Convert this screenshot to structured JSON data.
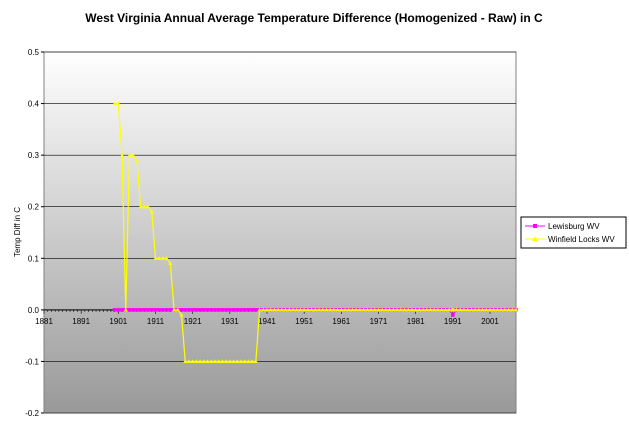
{
  "chart_data": {
    "type": "line",
    "title": "West Virginia Annual Average Temperature Difference (Homogenized - Raw) in C",
    "xlabel": "",
    "ylabel": "Temp Diff in C",
    "xlim": [
      1881,
      2008
    ],
    "ylim": [
      -0.2,
      0.5
    ],
    "x_ticks": [
      "1881",
      "1891",
      "1901",
      "1911",
      "1921",
      "1931",
      "1941",
      "1951",
      "1961",
      "1971",
      "1981",
      "1991",
      "2001"
    ],
    "y_ticks": [
      "0.5",
      "0.4",
      "0.3",
      "0.2",
      "0.1",
      "0.0",
      "-0.1",
      "-0.2"
    ],
    "grid": true,
    "legend_position": "right",
    "colors": {
      "lewisburg": "#ff00ff",
      "winfield": "#ffff00",
      "plot_bg_top": "#ffffff",
      "plot_bg_bottom": "#999999"
    },
    "series": [
      {
        "name": "Lewisburg WV",
        "color": "#ff00ff",
        "marker": "square",
        "points": [
          [
            1900,
            0
          ],
          [
            1901,
            0
          ],
          [
            1902,
            0
          ],
          [
            1903,
            0
          ],
          [
            1904,
            0
          ],
          [
            1905,
            0
          ],
          [
            1906,
            0
          ],
          [
            1907,
            0
          ],
          [
            1908,
            0
          ],
          [
            1909,
            0
          ],
          [
            1910,
            0
          ],
          [
            1911,
            0
          ],
          [
            1912,
            0
          ],
          [
            1913,
            0
          ],
          [
            1914,
            0
          ],
          [
            1915,
            0
          ],
          [
            1916,
            0
          ],
          [
            1917,
            0
          ],
          [
            1918,
            0
          ],
          [
            1919,
            0
          ],
          [
            1920,
            0
          ],
          [
            1921,
            0
          ],
          [
            1922,
            0
          ],
          [
            1923,
            0
          ],
          [
            1924,
            0
          ],
          [
            1925,
            0
          ],
          [
            1926,
            0
          ],
          [
            1927,
            0
          ],
          [
            1928,
            0
          ],
          [
            1929,
            0
          ],
          [
            1930,
            0
          ],
          [
            1931,
            0
          ],
          [
            1932,
            0
          ],
          [
            1933,
            0
          ],
          [
            1934,
            0
          ],
          [
            1935,
            0
          ],
          [
            1936,
            0
          ],
          [
            1937,
            0
          ],
          [
            1938,
            0
          ],
          [
            1939,
            0
          ],
          [
            1940,
            0
          ],
          [
            1941,
            0
          ],
          [
            1942,
            0
          ],
          [
            1943,
            0
          ],
          [
            1944,
            0
          ],
          [
            1945,
            0
          ],
          [
            1946,
            0
          ],
          [
            1947,
            0
          ],
          [
            1948,
            0
          ],
          [
            1949,
            0
          ],
          [
            1950,
            0
          ],
          [
            1951,
            0
          ],
          [
            1952,
            0
          ],
          [
            1953,
            0
          ],
          [
            1954,
            0
          ],
          [
            1955,
            0
          ],
          [
            1956,
            0
          ],
          [
            1957,
            0
          ],
          [
            1958,
            0
          ],
          [
            1959,
            0
          ],
          [
            1960,
            0
          ],
          [
            1961,
            0
          ],
          [
            1962,
            0
          ],
          [
            1963,
            0
          ],
          [
            1964,
            0
          ],
          [
            1965,
            0
          ],
          [
            1966,
            0
          ],
          [
            1967,
            0
          ],
          [
            1968,
            0
          ],
          [
            1969,
            0
          ],
          [
            1970,
            0
          ],
          [
            1971,
            0
          ],
          [
            1972,
            0
          ],
          [
            1973,
            0
          ],
          [
            1974,
            0
          ],
          [
            1975,
            0
          ],
          [
            1976,
            0
          ],
          [
            1977,
            0
          ],
          [
            1978,
            0
          ],
          [
            1979,
            0
          ],
          [
            1980,
            0
          ],
          [
            1981,
            0
          ],
          [
            1982,
            0
          ],
          [
            1983,
            0
          ],
          [
            1984,
            0
          ],
          [
            1985,
            0
          ],
          [
            1986,
            0
          ],
          [
            1987,
            0
          ],
          [
            1988,
            0
          ],
          [
            1989,
            0
          ],
          [
            1990,
            0
          ],
          [
            1991,
            -0.01
          ],
          [
            1992,
            0
          ],
          [
            1993,
            0
          ],
          [
            1994,
            0
          ],
          [
            1995,
            0
          ],
          [
            1996,
            0
          ],
          [
            1997,
            0
          ],
          [
            1998,
            0
          ],
          [
            1999,
            0
          ],
          [
            2000,
            0
          ],
          [
            2001,
            0
          ],
          [
            2002,
            0
          ],
          [
            2003,
            0
          ],
          [
            2004,
            0
          ],
          [
            2005,
            0
          ],
          [
            2006,
            0
          ],
          [
            2007,
            0
          ],
          [
            2008,
            0
          ]
        ]
      },
      {
        "name": "Winfield Locks WV",
        "color": "#ffff00",
        "marker": "triangle",
        "points": [
          [
            1900,
            0.4
          ],
          [
            1901,
            0.4
          ],
          [
            1902,
            0.3
          ],
          [
            1903,
            0.0
          ],
          [
            1904,
            0.3
          ],
          [
            1905,
            0.3
          ],
          [
            1906,
            0.29
          ],
          [
            1907,
            0.2
          ],
          [
            1908,
            0.2
          ],
          [
            1909,
            0.2
          ],
          [
            1910,
            0.19
          ],
          [
            1911,
            0.1
          ],
          [
            1912,
            0.1
          ],
          [
            1913,
            0.1
          ],
          [
            1914,
            0.1
          ],
          [
            1915,
            0.09
          ],
          [
            1916,
            0.0
          ],
          [
            1917,
            0.0
          ],
          [
            1918,
            -0.01
          ],
          [
            1919,
            -0.1
          ],
          [
            1920,
            -0.1
          ],
          [
            1921,
            -0.1
          ],
          [
            1922,
            -0.1
          ],
          [
            1923,
            -0.1
          ],
          [
            1924,
            -0.1
          ],
          [
            1925,
            -0.1
          ],
          [
            1926,
            -0.1
          ],
          [
            1927,
            -0.1
          ],
          [
            1928,
            -0.1
          ],
          [
            1929,
            -0.1
          ],
          [
            1930,
            -0.1
          ],
          [
            1931,
            -0.1
          ],
          [
            1932,
            -0.1
          ],
          [
            1933,
            -0.1
          ],
          [
            1934,
            -0.1
          ],
          [
            1935,
            -0.1
          ],
          [
            1936,
            -0.1
          ],
          [
            1937,
            -0.1
          ],
          [
            1938,
            -0.1
          ],
          [
            1939,
            0.0
          ],
          [
            1940,
            0
          ],
          [
            1941,
            0
          ],
          [
            1942,
            0
          ],
          [
            1943,
            0
          ],
          [
            1944,
            0
          ],
          [
            1945,
            0
          ],
          [
            1946,
            0
          ],
          [
            1947,
            0
          ],
          [
            1948,
            0
          ],
          [
            1949,
            0
          ],
          [
            1950,
            0
          ],
          [
            1951,
            0
          ],
          [
            1952,
            0
          ],
          [
            1953,
            0
          ],
          [
            1954,
            0
          ],
          [
            1955,
            0
          ],
          [
            1956,
            0
          ],
          [
            1957,
            0
          ],
          [
            1958,
            0
          ],
          [
            1959,
            0
          ],
          [
            1960,
            0
          ],
          [
            1961,
            0
          ],
          [
            1962,
            0
          ],
          [
            1963,
            0
          ],
          [
            1964,
            0
          ],
          [
            1965,
            0
          ],
          [
            1966,
            0
          ],
          [
            1967,
            0
          ],
          [
            1968,
            0
          ],
          [
            1969,
            0
          ],
          [
            1970,
            0
          ],
          [
            1971,
            0
          ],
          [
            1972,
            0
          ],
          [
            1973,
            0
          ],
          [
            1974,
            0
          ],
          [
            1975,
            0
          ],
          [
            1976,
            0
          ],
          [
            1977,
            0
          ],
          [
            1978,
            0
          ],
          [
            1979,
            0
          ],
          [
            1980,
            0
          ],
          [
            1981,
            0
          ],
          [
            1982,
            0
          ],
          [
            1983,
            0
          ],
          [
            1984,
            0
          ],
          [
            1985,
            0
          ],
          [
            1986,
            0
          ],
          [
            1987,
            0
          ],
          [
            1988,
            0
          ],
          [
            1989,
            0
          ],
          [
            1990,
            0
          ],
          [
            1991,
            0
          ],
          [
            1992,
            0
          ],
          [
            1993,
            0
          ],
          [
            1994,
            0
          ],
          [
            1995,
            0
          ],
          [
            1996,
            0
          ],
          [
            1997,
            0
          ],
          [
            1998,
            0
          ],
          [
            1999,
            0
          ],
          [
            2000,
            0
          ],
          [
            2001,
            0
          ],
          [
            2002,
            0
          ],
          [
            2003,
            0
          ],
          [
            2004,
            0
          ],
          [
            2005,
            0
          ],
          [
            2006,
            0
          ],
          [
            2007,
            0
          ],
          [
            2008,
            0
          ]
        ]
      }
    ]
  }
}
